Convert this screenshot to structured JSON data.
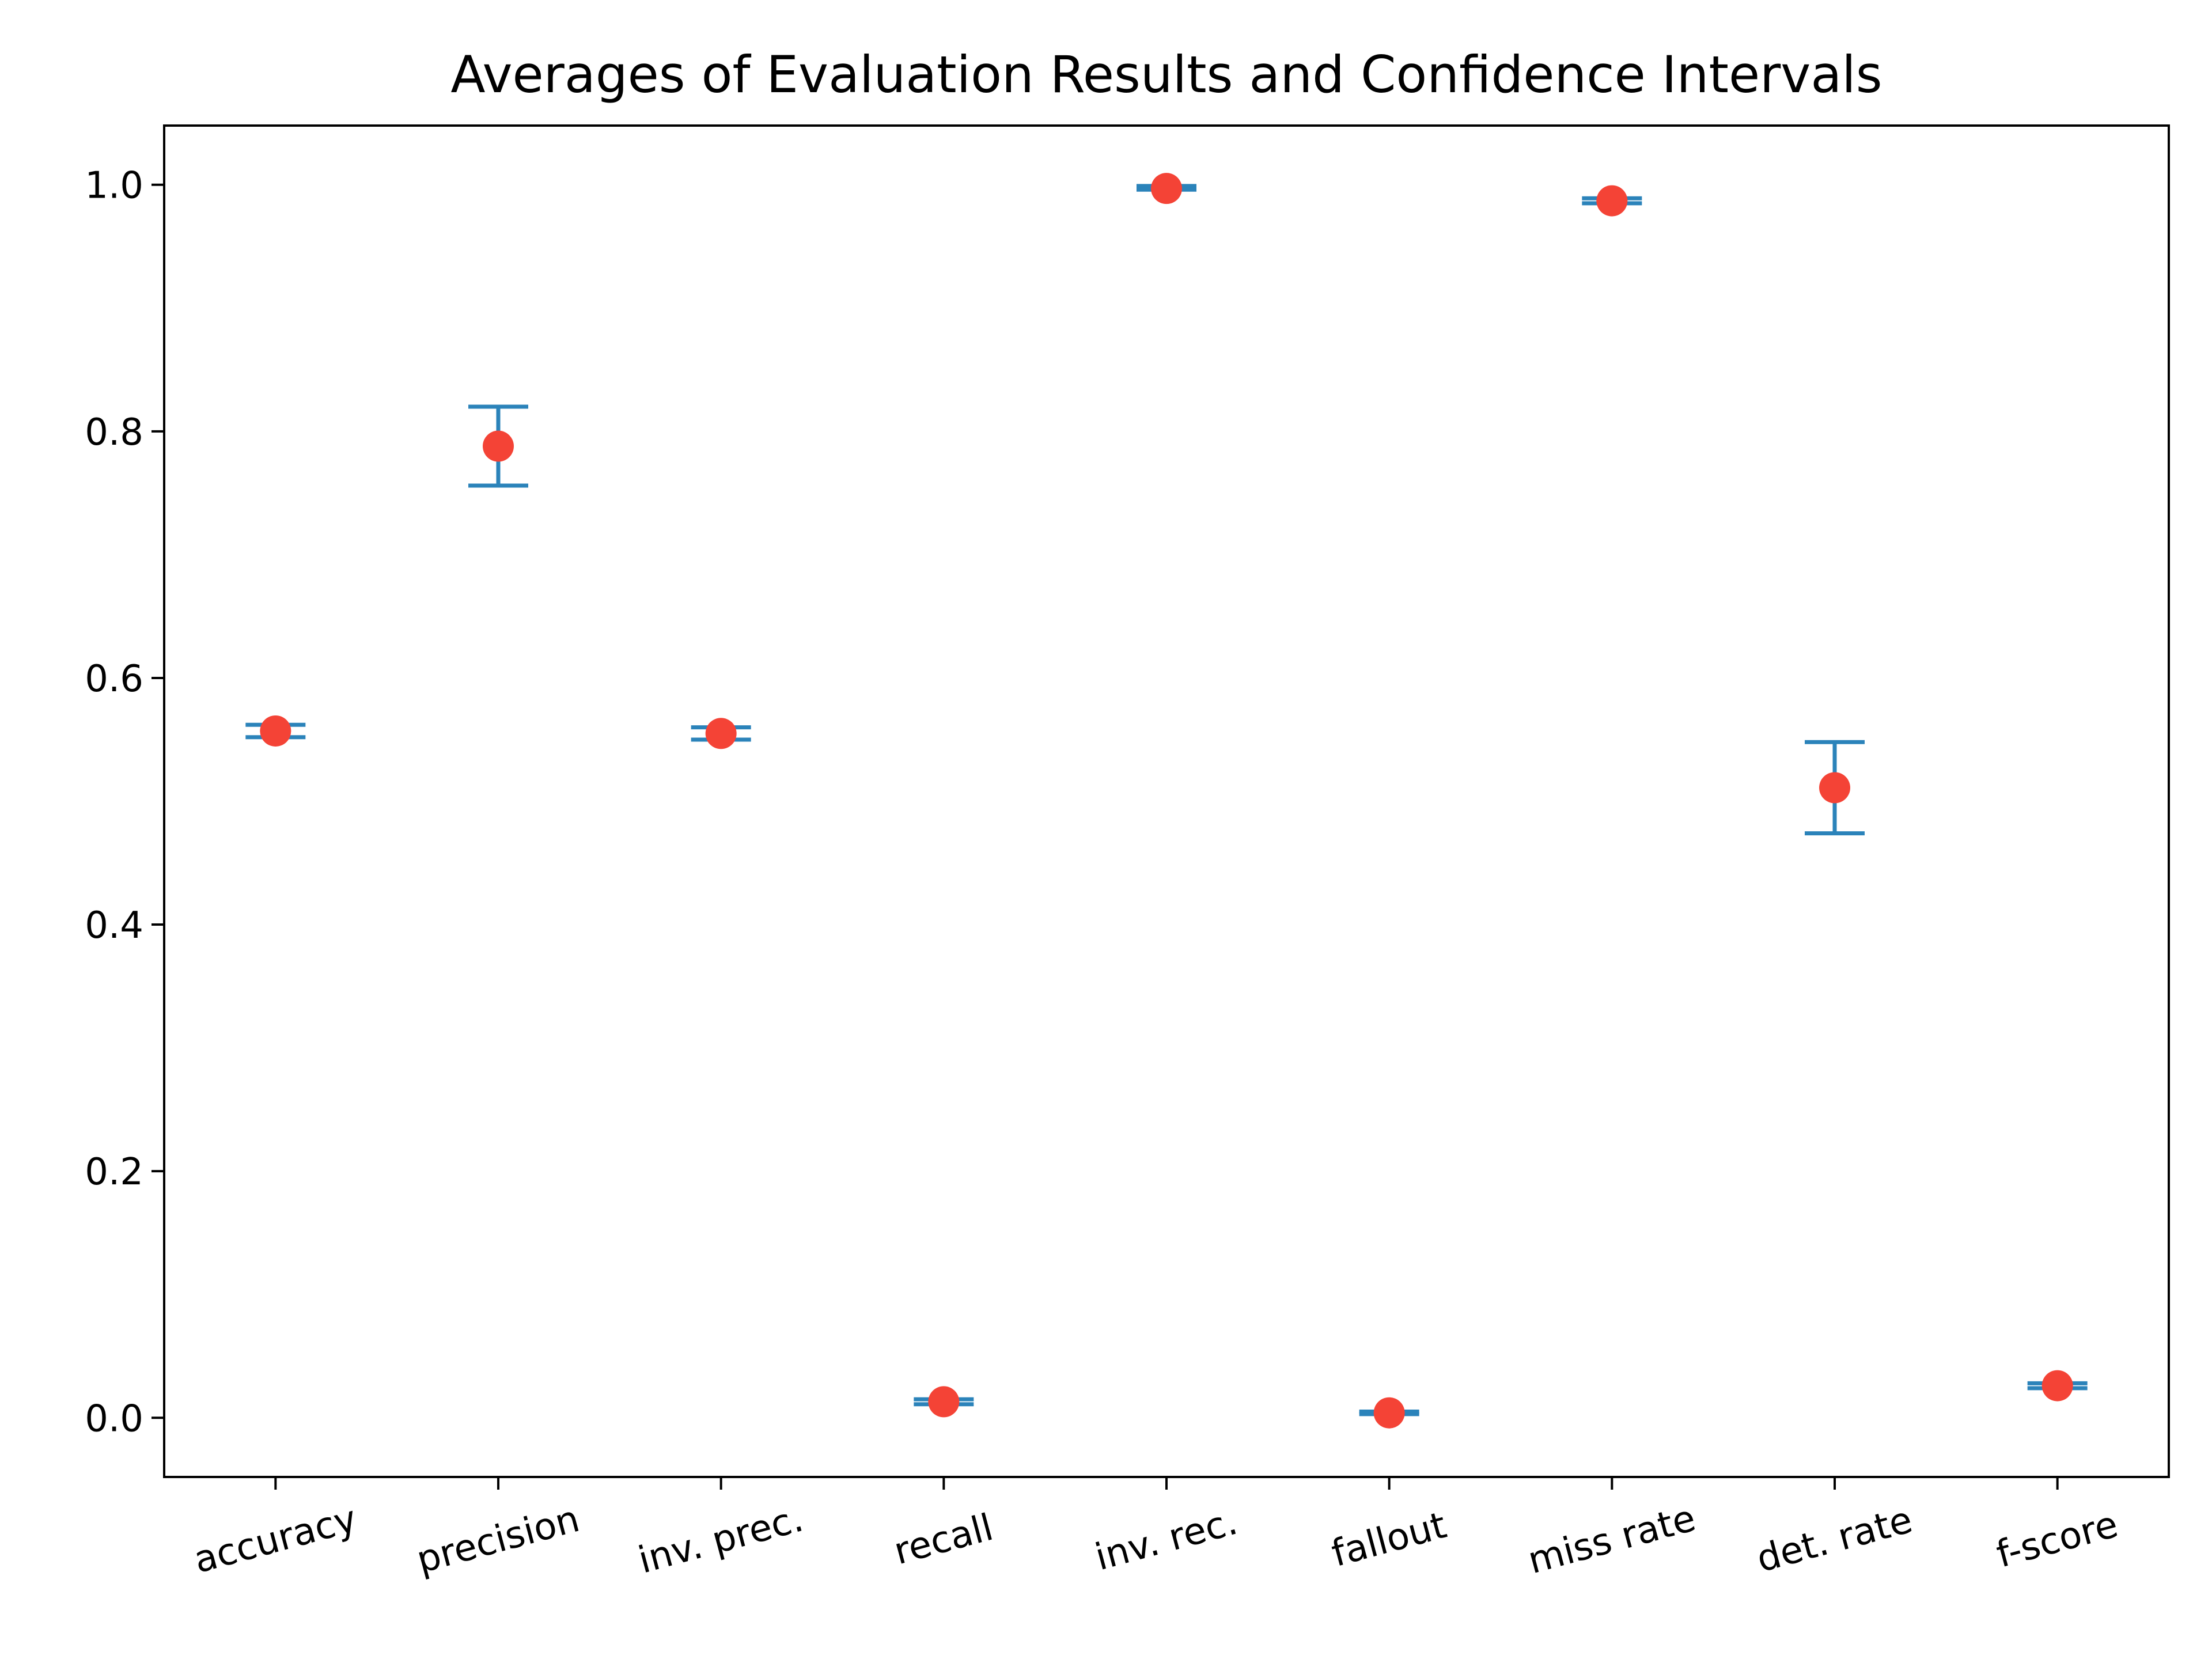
{
  "chart_data": {
    "type": "scatter",
    "title": "Averages of Evaluation Results and Confidence Intervals",
    "xlabel": "",
    "ylabel": "",
    "categories": [
      "accuracy",
      "precision",
      "inv. prec.",
      "recall",
      "inv. rec.",
      "fallout",
      "miss rate",
      "det. rate",
      "f-score"
    ],
    "values": [
      0.557,
      0.788,
      0.555,
      0.013,
      0.997,
      0.004,
      0.987,
      0.511,
      0.026
    ],
    "ci_lower": [
      0.552,
      0.756,
      0.55,
      0.011,
      0.996,
      0.003,
      0.985,
      0.474,
      0.024
    ],
    "ci_upper": [
      0.562,
      0.82,
      0.56,
      0.015,
      0.999,
      0.005,
      0.989,
      0.548,
      0.028
    ],
    "y_ticks": [
      0.0,
      0.2,
      0.4,
      0.6,
      0.8,
      1.0
    ],
    "y_tick_labels": [
      "0.0",
      "0.2",
      "0.4",
      "0.6",
      "0.8",
      "1.0"
    ],
    "ylim": [
      -0.048,
      1.048
    ],
    "grid": false,
    "legend": "none",
    "colors": {
      "marker": "#f44336",
      "errorbar": "#2b83ba"
    }
  }
}
